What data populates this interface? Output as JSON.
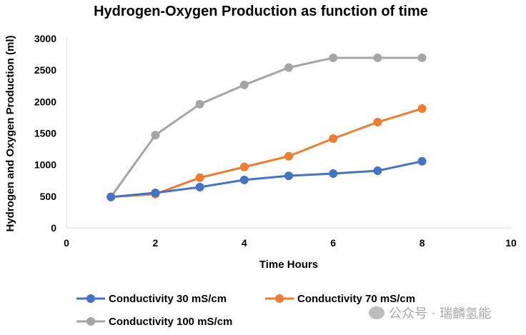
{
  "chart_data": {
    "type": "line",
    "title": "Hydrogen-Oxygen Production as function of time",
    "xlabel": "Time Hours",
    "ylabel": "Hydrogen and Oxygen Production (ml)",
    "xlim": [
      0,
      10
    ],
    "ylim": [
      0,
      3000
    ],
    "xticks": [
      0,
      2,
      4,
      6,
      8,
      10
    ],
    "yticks": [
      0,
      500,
      1000,
      1500,
      2000,
      2500,
      3000
    ],
    "grid": false,
    "legend_position": "bottom",
    "x": [
      1,
      2,
      3,
      4,
      5,
      6,
      7,
      8
    ],
    "series": [
      {
        "name": "Conductivity 30 mS/cm",
        "color": "#4472C4",
        "values": [
          490,
          555,
          645,
          760,
          825,
          860,
          905,
          1055
        ]
      },
      {
        "name": "Conductivity 70 mS/cm",
        "color": "#ED7D31",
        "values": [
          490,
          535,
          795,
          965,
          1135,
          1415,
          1675,
          1890
        ]
      },
      {
        "name": "Conductivity 100 mS/cm",
        "color": "#A5A5A5",
        "values": [
          490,
          1470,
          1960,
          2265,
          2540,
          2695,
          2695,
          2695
        ]
      }
    ]
  },
  "watermark": {
    "text": "公众号 · 瑞麟氢能"
  }
}
